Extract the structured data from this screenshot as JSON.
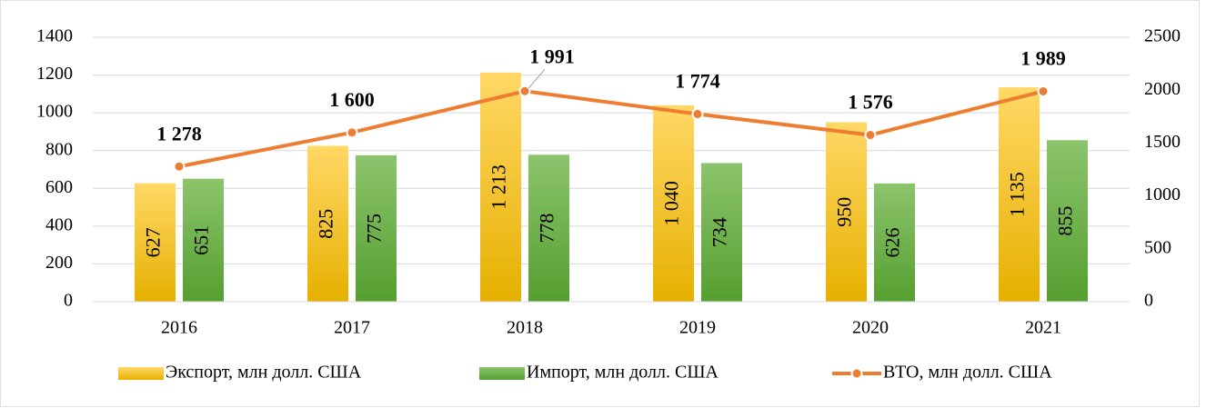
{
  "chart_data": {
    "type": "bar",
    "categories": [
      "2016",
      "2017",
      "2018",
      "2019",
      "2020",
      "2021"
    ],
    "series": [
      {
        "name": "Экспорт, млн долл. США",
        "color": "#f5c000",
        "values": [
          627,
          825,
          1213,
          1040,
          950,
          1135
        ],
        "value_labels": [
          "627",
          "825",
          "1 213",
          "1 040",
          "950",
          "1 135"
        ]
      },
      {
        "name": "Импорт, млн долл. США",
        "color": "#6aad43",
        "values": [
          651,
          775,
          778,
          734,
          626,
          855
        ]
      },
      {
        "name": "ВТО, млн долл. США",
        "color": "#ed7d31",
        "axis": "y2",
        "values": [
          1278,
          1600,
          1991,
          1774,
          1576,
          1989
        ],
        "value_labels": [
          "1 278",
          "1 600",
          "1 991",
          "1 774",
          "1 576",
          "1 989"
        ]
      }
    ],
    "ylim": [
      0,
      1400
    ],
    "yticks": [
      0,
      200,
      400,
      600,
      800,
      1000,
      1200,
      1400
    ],
    "y2lim": [
      0,
      2500
    ],
    "y2ticks": [
      0,
      500,
      1000,
      1500,
      2000,
      2500
    ],
    "legend": "bottom"
  }
}
